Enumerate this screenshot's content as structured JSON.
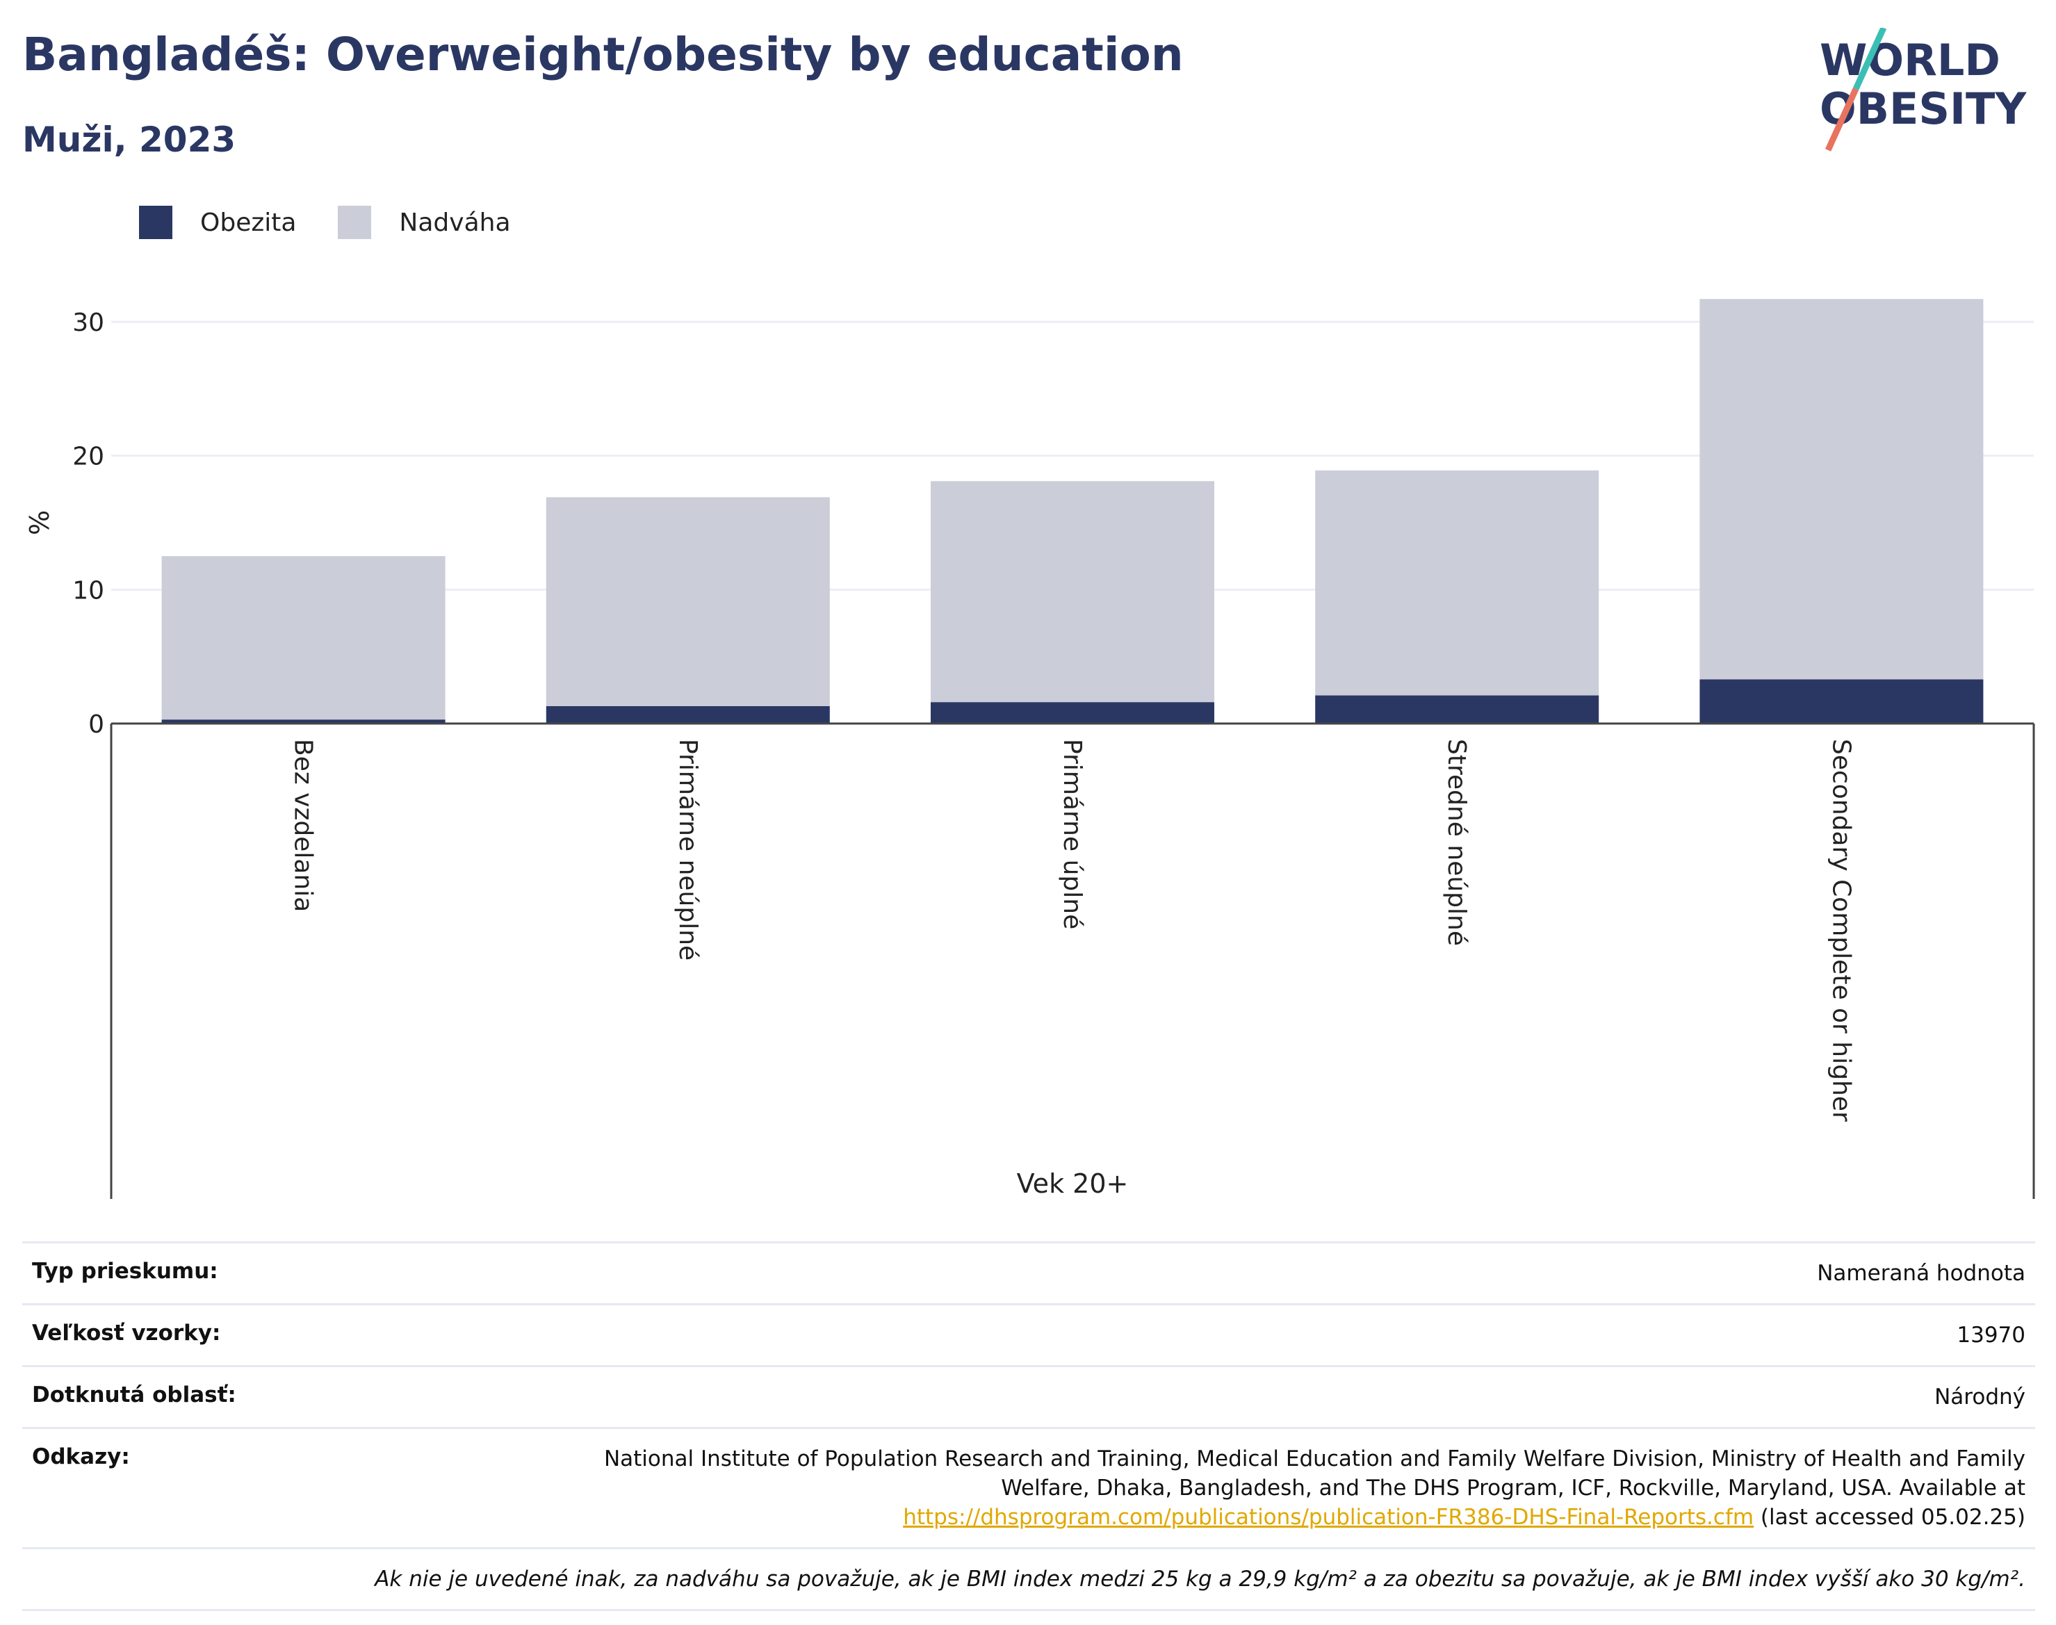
{
  "header": {
    "title": "Bangladéš: Overweight/obesity by education",
    "subtitle": "Muži, 2023"
  },
  "logo": {
    "line1": "WORLD",
    "line2": "OBESITY"
  },
  "colors": {
    "obesity": "#2b3763",
    "overweight": "#cbcdd9",
    "accent_teal": "#3bbfb4",
    "accent_red": "#e8735f",
    "link": "#e0a800"
  },
  "chart_data": {
    "type": "bar",
    "stacked": true,
    "categories": [
      "Bez vzdelania",
      "Primárne neúplné",
      "Primárne úplné",
      "Stredné neúplné",
      "Secondary Complete or higher"
    ],
    "series": [
      {
        "name": "Obezita",
        "values": [
          0.3,
          1.3,
          1.6,
          2.1,
          3.3
        ]
      },
      {
        "name": "Nadváha",
        "values": [
          12.2,
          15.6,
          16.5,
          16.8,
          28.4
        ]
      }
    ],
    "ylabel": "%",
    "xlabel": "Vek 20+",
    "ylim": [
      0,
      33
    ],
    "yticks": [
      0,
      10,
      20,
      30
    ],
    "legend": "top-left",
    "grid": true
  },
  "info": {
    "survey_type_label": "Typ prieskumu:",
    "survey_type_value": "Nameraná hodnota",
    "sample_size_label": "Veľkosť vzorky:",
    "sample_size_value": "13970",
    "area_label": "Dotknutá oblasť:",
    "area_value": "Národný",
    "refs_label": "Odkazy:",
    "refs_text": "National Institute of Population Research and Training, Medical Education and Family Welfare Division, Ministry of Health and Family Welfare, Dhaka, Bangladesh, and The DHS Program, ICF, Rockville, Maryland, USA. Available at",
    "refs_link": "https://dhsprogram.com/publications/publication-FR386-DHS-Final-Reports.cfm",
    "refs_suffix": "(last accessed 05.02.25)",
    "note": "Ak nie je uvedené inak, za nadváhu sa považuje, ak je BMI index medzi 25 kg a 29,9 kg/m² a za obezitu sa považuje, ak je BMI index vyšší ako 30 kg/m²."
  }
}
